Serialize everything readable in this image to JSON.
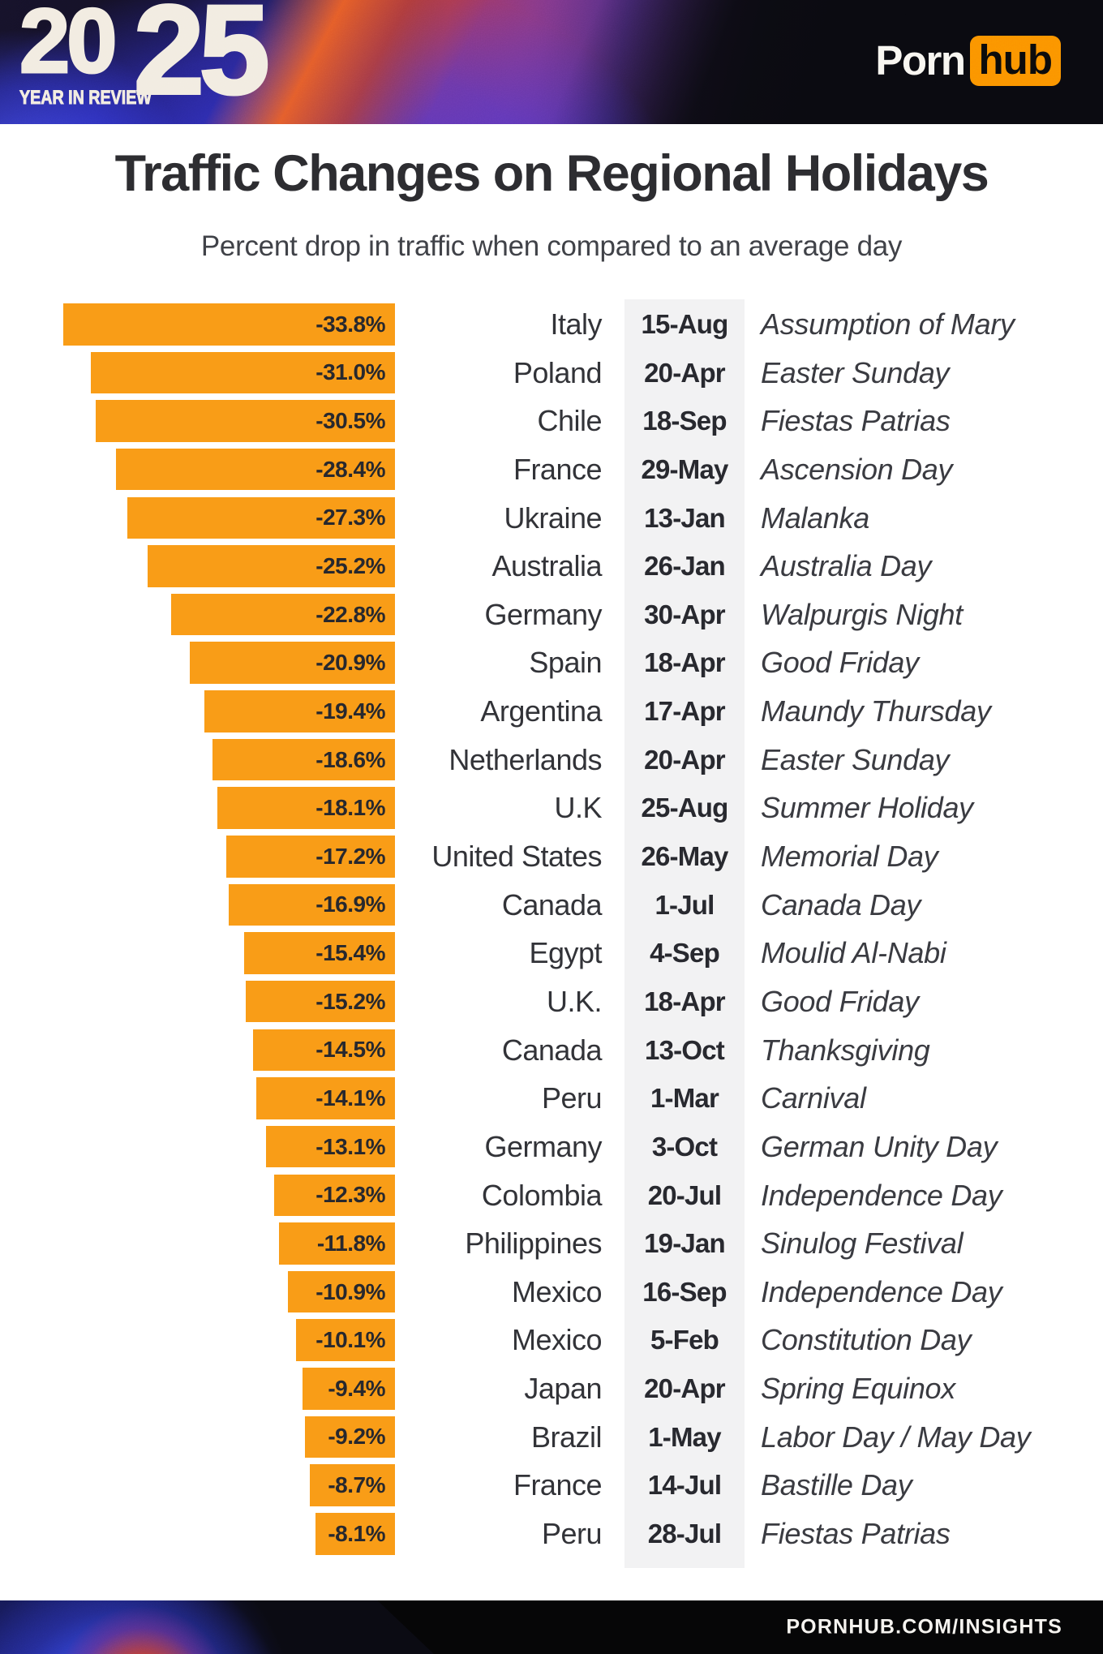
{
  "header": {
    "year_first": "20",
    "year_second": "25",
    "tagline": "YEAR IN REVIEW",
    "logo_part1": "Porn",
    "logo_part2": "hub"
  },
  "title": "Traffic Changes on Regional Holidays",
  "subtitle": "Percent drop in traffic when compared to an average day",
  "footer": {
    "url_text": "PORNHUB.COM/INSIGHTS"
  },
  "colors": {
    "bar_orange": "#F99D17",
    "logo_orange": "#FB9400",
    "date_strip_gray": "#F2F2F3",
    "cream": "#F2ECE1",
    "footer_black": "#060607",
    "text_dark": "#2B2C31"
  },
  "chart_data": {
    "type": "bar",
    "orientation": "horizontal-right-aligned",
    "title": "Traffic Changes on Regional Holidays",
    "subtitle": "Percent drop in traffic when compared to an average day",
    "unit": "percent drop vs average day",
    "value_range": [
      -33.8,
      0
    ],
    "columns": [
      "traffic_change_pct",
      "country",
      "date",
      "holiday"
    ],
    "rows": [
      {
        "value": -33.8,
        "label": "-33.8%",
        "country": "Italy",
        "date": "15-Aug",
        "holiday": "Assumption of Mary"
      },
      {
        "value": -31.0,
        "label": "-31.0%",
        "country": "Poland",
        "date": "20-Apr",
        "holiday": "Easter Sunday"
      },
      {
        "value": -30.5,
        "label": "-30.5%",
        "country": "Chile",
        "date": "18-Sep",
        "holiday": "Fiestas Patrias"
      },
      {
        "value": -28.4,
        "label": "-28.4%",
        "country": "France",
        "date": "29-May",
        "holiday": "Ascension Day"
      },
      {
        "value": -27.3,
        "label": "-27.3%",
        "country": "Ukraine",
        "date": "13-Jan",
        "holiday": "Malanka"
      },
      {
        "value": -25.2,
        "label": "-25.2%",
        "country": "Australia",
        "date": "26-Jan",
        "holiday": "Australia Day"
      },
      {
        "value": -22.8,
        "label": "-22.8%",
        "country": "Germany",
        "date": "30-Apr",
        "holiday": "Walpurgis Night"
      },
      {
        "value": -20.9,
        "label": "-20.9%",
        "country": "Spain",
        "date": "18-Apr",
        "holiday": "Good Friday"
      },
      {
        "value": -19.4,
        "label": "-19.4%",
        "country": "Argentina",
        "date": "17-Apr",
        "holiday": "Maundy Thursday"
      },
      {
        "value": -18.6,
        "label": "-18.6%",
        "country": "Netherlands",
        "date": "20-Apr",
        "holiday": "Easter Sunday"
      },
      {
        "value": -18.1,
        "label": "-18.1%",
        "country": "U.K",
        "date": "25-Aug",
        "holiday": "Summer Holiday"
      },
      {
        "value": -17.2,
        "label": "-17.2%",
        "country": "United States",
        "date": "26-May",
        "holiday": "Memorial Day"
      },
      {
        "value": -16.9,
        "label": "-16.9%",
        "country": "Canada",
        "date": "1-Jul",
        "holiday": "Canada Day"
      },
      {
        "value": -15.4,
        "label": "-15.4%",
        "country": "Egypt",
        "date": "4-Sep",
        "holiday": "Moulid Al-Nabi"
      },
      {
        "value": -15.2,
        "label": "-15.2%",
        "country": "U.K.",
        "date": "18-Apr",
        "holiday": "Good Friday"
      },
      {
        "value": -14.5,
        "label": "-14.5%",
        "country": "Canada",
        "date": "13-Oct",
        "holiday": "Thanksgiving"
      },
      {
        "value": -14.1,
        "label": "-14.1%",
        "country": "Peru",
        "date": "1-Mar",
        "holiday": "Carnival"
      },
      {
        "value": -13.1,
        "label": "-13.1%",
        "country": "Germany",
        "date": "3-Oct",
        "holiday": "German Unity Day"
      },
      {
        "value": -12.3,
        "label": "-12.3%",
        "country": "Colombia",
        "date": "20-Jul",
        "holiday": "Independence Day"
      },
      {
        "value": -11.8,
        "label": "-11.8%",
        "country": "Philippines",
        "date": "19-Jan",
        "holiday": "Sinulog Festival"
      },
      {
        "value": -10.9,
        "label": "-10.9%",
        "country": "Mexico",
        "date": "16-Sep",
        "holiday": "Independence Day"
      },
      {
        "value": -10.1,
        "label": "-10.1%",
        "country": "Mexico",
        "date": "5-Feb",
        "holiday": "Constitution Day"
      },
      {
        "value": -9.4,
        "label": "-9.4%",
        "country": "Japan",
        "date": "20-Apr",
        "holiday": "Spring Equinox"
      },
      {
        "value": -9.2,
        "label": "-9.2%",
        "country": "Brazil",
        "date": "1-May",
        "holiday": "Labor Day / May Day"
      },
      {
        "value": -8.7,
        "label": "-8.7%",
        "country": "France",
        "date": "14-Jul",
        "holiday": "Bastille Day"
      },
      {
        "value": -8.1,
        "label": "-8.1%",
        "country": "Peru",
        "date": "28-Jul",
        "holiday": "Fiestas Patrias"
      }
    ]
  }
}
